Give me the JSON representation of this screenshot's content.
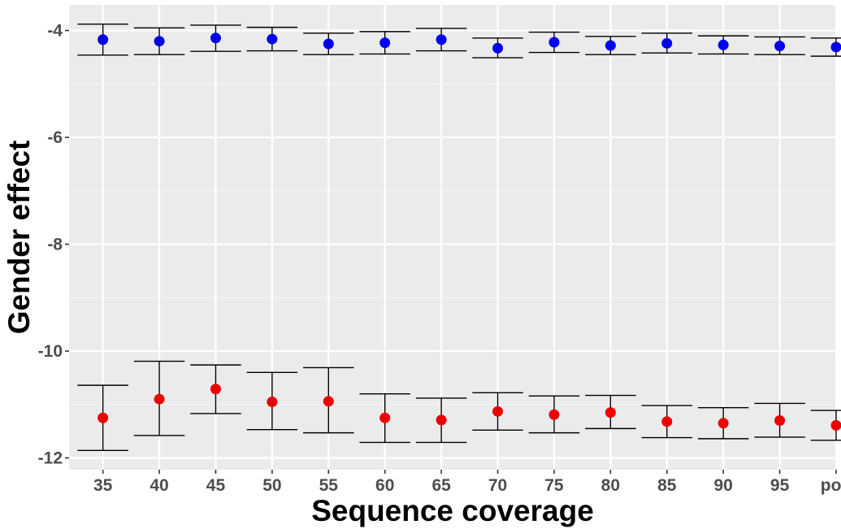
{
  "chart_data": {
    "type": "scatter",
    "title": "",
    "xlabel": "Sequence coverage",
    "ylabel": "Gender effect",
    "categories": [
      "35",
      "40",
      "45",
      "50",
      "55",
      "60",
      "65",
      "70",
      "75",
      "80",
      "85",
      "90",
      "95",
      "pop"
    ],
    "y_ticks": [
      -4,
      -6,
      -8,
      -10,
      -12
    ],
    "y_tick_labels": [
      "-4",
      "-6",
      "-8",
      "-10",
      "-12"
    ],
    "ylim": [
      -12.22,
      -3.52
    ],
    "grid": true,
    "legend": "none",
    "series": [
      {
        "color": "#0000ee",
        "values": [
          -4.17,
          -4.2,
          -4.14,
          -4.16,
          -4.25,
          -4.23,
          -4.17,
          -4.33,
          -4.22,
          -4.28,
          -4.24,
          -4.27,
          -4.29,
          -4.31
        ],
        "lower": [
          -4.46,
          -4.45,
          -4.39,
          -4.38,
          -4.45,
          -4.44,
          -4.38,
          -4.51,
          -4.41,
          -4.45,
          -4.42,
          -4.44,
          -4.45,
          -4.48
        ],
        "upper": [
          -3.88,
          -3.95,
          -3.9,
          -3.94,
          -4.05,
          -4.02,
          -3.96,
          -4.14,
          -4.03,
          -4.11,
          -4.05,
          -4.1,
          -4.12,
          -4.14
        ]
      },
      {
        "color": "#ee0000",
        "values": [
          -11.25,
          -10.9,
          -10.71,
          -10.95,
          -10.94,
          -11.25,
          -11.29,
          -11.13,
          -11.19,
          -11.15,
          -11.32,
          -11.35,
          -11.3,
          -11.39
        ],
        "lower": [
          -11.86,
          -11.58,
          -11.17,
          -11.47,
          -11.53,
          -11.71,
          -11.71,
          -11.48,
          -11.53,
          -11.45,
          -11.62,
          -11.64,
          -11.61,
          -11.67
        ],
        "upper": [
          -10.64,
          -10.19,
          -10.26,
          -10.4,
          -10.31,
          -10.8,
          -10.88,
          -10.78,
          -10.84,
          -10.83,
          -11.02,
          -11.06,
          -10.98,
          -11.11
        ]
      }
    ]
  }
}
